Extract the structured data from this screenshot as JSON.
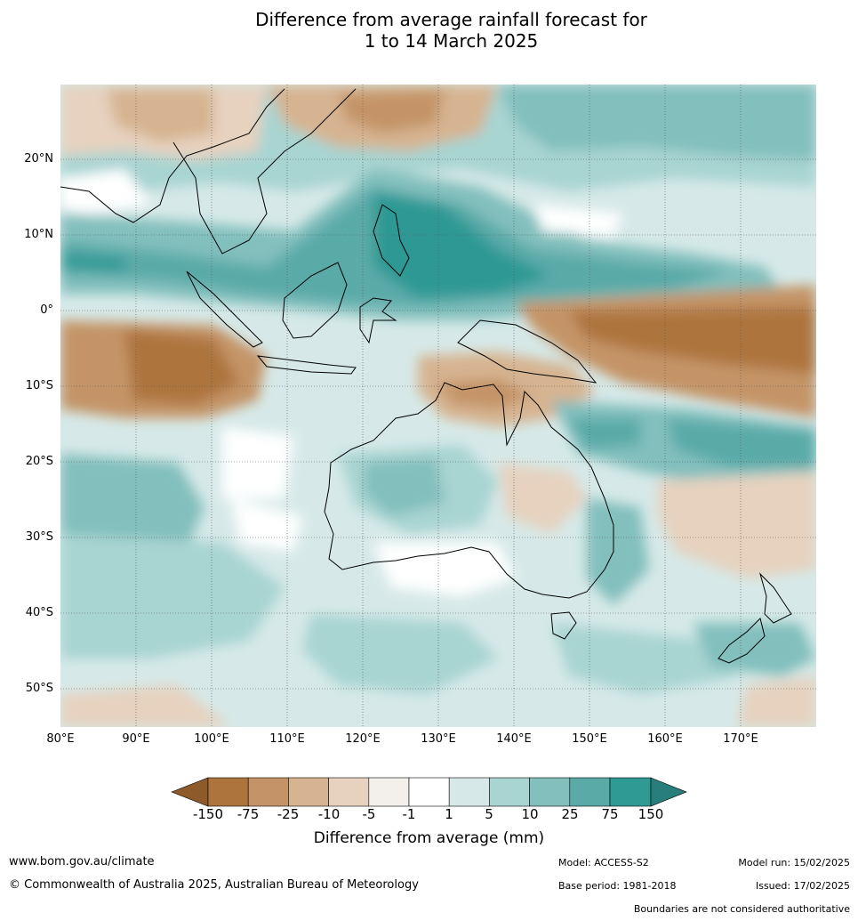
{
  "title": {
    "line1": "Difference from average rainfall forecast for",
    "line2": "1 to 14 March 2025"
  },
  "latitude_labels": [
    "20°N",
    "10°N",
    "0°",
    "10°S",
    "20°S",
    "30°S",
    "40°S",
    "50°S"
  ],
  "longitude_labels": [
    "80°E",
    "90°E",
    "100°E",
    "110°E",
    "120°E",
    "130°E",
    "140°E",
    "150°E",
    "160°E",
    "170°E"
  ],
  "colorbar": {
    "tick_labels": [
      "-150",
      "-75",
      "-25",
      "-10",
      "-5",
      "-1",
      "1",
      "5",
      "10",
      "25",
      "75",
      "150"
    ],
    "colors": [
      "#8e5a2a",
      "#ad743d",
      "#c49468",
      "#d6b491",
      "#e6d2bf",
      "#f3efea",
      "#ffffff",
      "#d6e9e8",
      "#a8d4d2",
      "#82bfbd",
      "#5aaaa8",
      "#2f9994",
      "#287e7b"
    ],
    "label": "Difference from average (mm)"
  },
  "footer": {
    "website": "www.bom.gov.au/climate",
    "copyright": "© Commonwealth of Australia 2025, Australian Bureau of Meteorology",
    "model": "Model: ACCESS-S2",
    "base_period": "Base period: 1981-2018",
    "model_run": "Model run: 15/02/2025",
    "issued": "Issued: 17/02/2025",
    "disclaimer": "Boundaries are not considered authoritative"
  }
}
